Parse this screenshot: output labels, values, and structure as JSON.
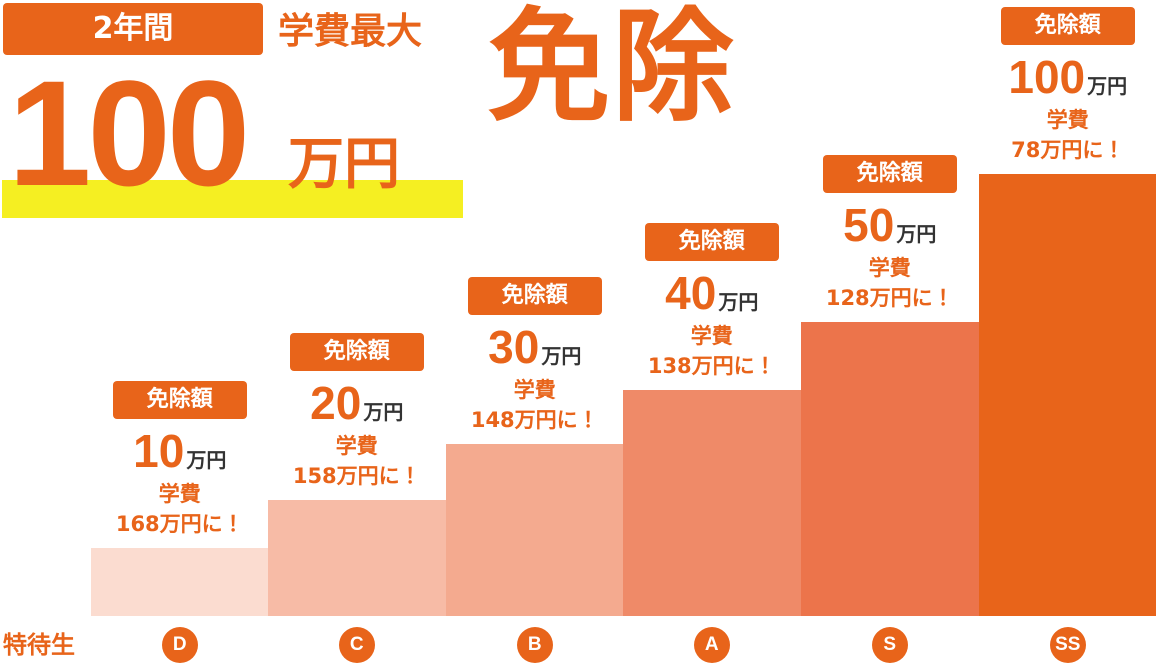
{
  "header": {
    "period": "2年間",
    "subject": "学費最大",
    "amount": "100",
    "unit": "万円",
    "action": "免除"
  },
  "row_label": "特待生",
  "tiers": [
    {
      "grade": "D",
      "badge": "免除額",
      "amount": "10",
      "unit": "万円",
      "fee_label": "学費",
      "fee": "168万円に！"
    },
    {
      "grade": "C",
      "badge": "免除額",
      "amount": "20",
      "unit": "万円",
      "fee_label": "学費",
      "fee": "158万円に！"
    },
    {
      "grade": "B",
      "badge": "免除額",
      "amount": "30",
      "unit": "万円",
      "fee_label": "学費",
      "fee": "148万円に！"
    },
    {
      "grade": "A",
      "badge": "免除額",
      "amount": "40",
      "unit": "万円",
      "fee_label": "学費",
      "fee": "138万円に！"
    },
    {
      "grade": "S",
      "badge": "免除額",
      "amount": "50",
      "unit": "万円",
      "fee_label": "学費",
      "fee": "128万円に！"
    },
    {
      "grade": "SS",
      "badge": "免除額",
      "amount": "100",
      "unit": "万円",
      "fee_label": "学費",
      "fee": "78万円に！"
    }
  ]
}
